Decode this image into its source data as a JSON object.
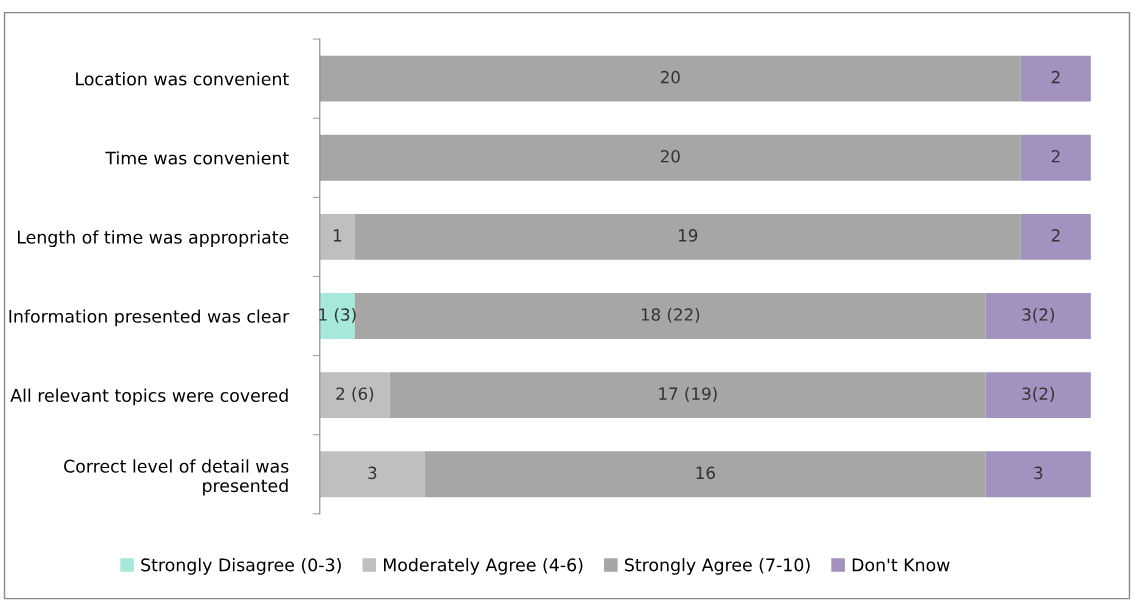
{
  "chart_data": {
    "type": "bar",
    "orientation": "horizontal",
    "stacked": true,
    "legend": "bottom",
    "grid": false,
    "tick_labels": "y",
    "categories": [
      "Location was convenient",
      "Time was convenient",
      "Length of time was appropriate",
      "Information presented was clear",
      "All relevant topics were covered",
      "Correct level of detail was presented"
    ],
    "series": [
      {
        "name": "Strongly Disagree (0-3)",
        "color": "#a6e8da",
        "values": [
          null,
          null,
          null,
          1,
          null,
          null
        ],
        "value_labels": [
          null,
          null,
          null,
          "1 (3)",
          null,
          null
        ]
      },
      {
        "name": "Moderately Agree (4-6)",
        "color": "#bfbfbf",
        "values": [
          null,
          null,
          1,
          null,
          2,
          3
        ],
        "value_labels": [
          null,
          null,
          "1",
          null,
          "2 (6)",
          "3"
        ]
      },
      {
        "name": "Strongly Agree (7-10)",
        "color": "#a6a6a6",
        "values": [
          20,
          20,
          19,
          18,
          17,
          16
        ],
        "value_labels": [
          "20",
          "20",
          "19",
          "18 (22)",
          "17 (19)",
          "16"
        ]
      },
      {
        "name": "Don't Know",
        "color": "#a391c0",
        "values": [
          2,
          2,
          2,
          3,
          3,
          3
        ],
        "value_labels": [
          "2",
          "2",
          "2",
          "3(2)",
          "3(2)",
          "3"
        ]
      }
    ]
  }
}
